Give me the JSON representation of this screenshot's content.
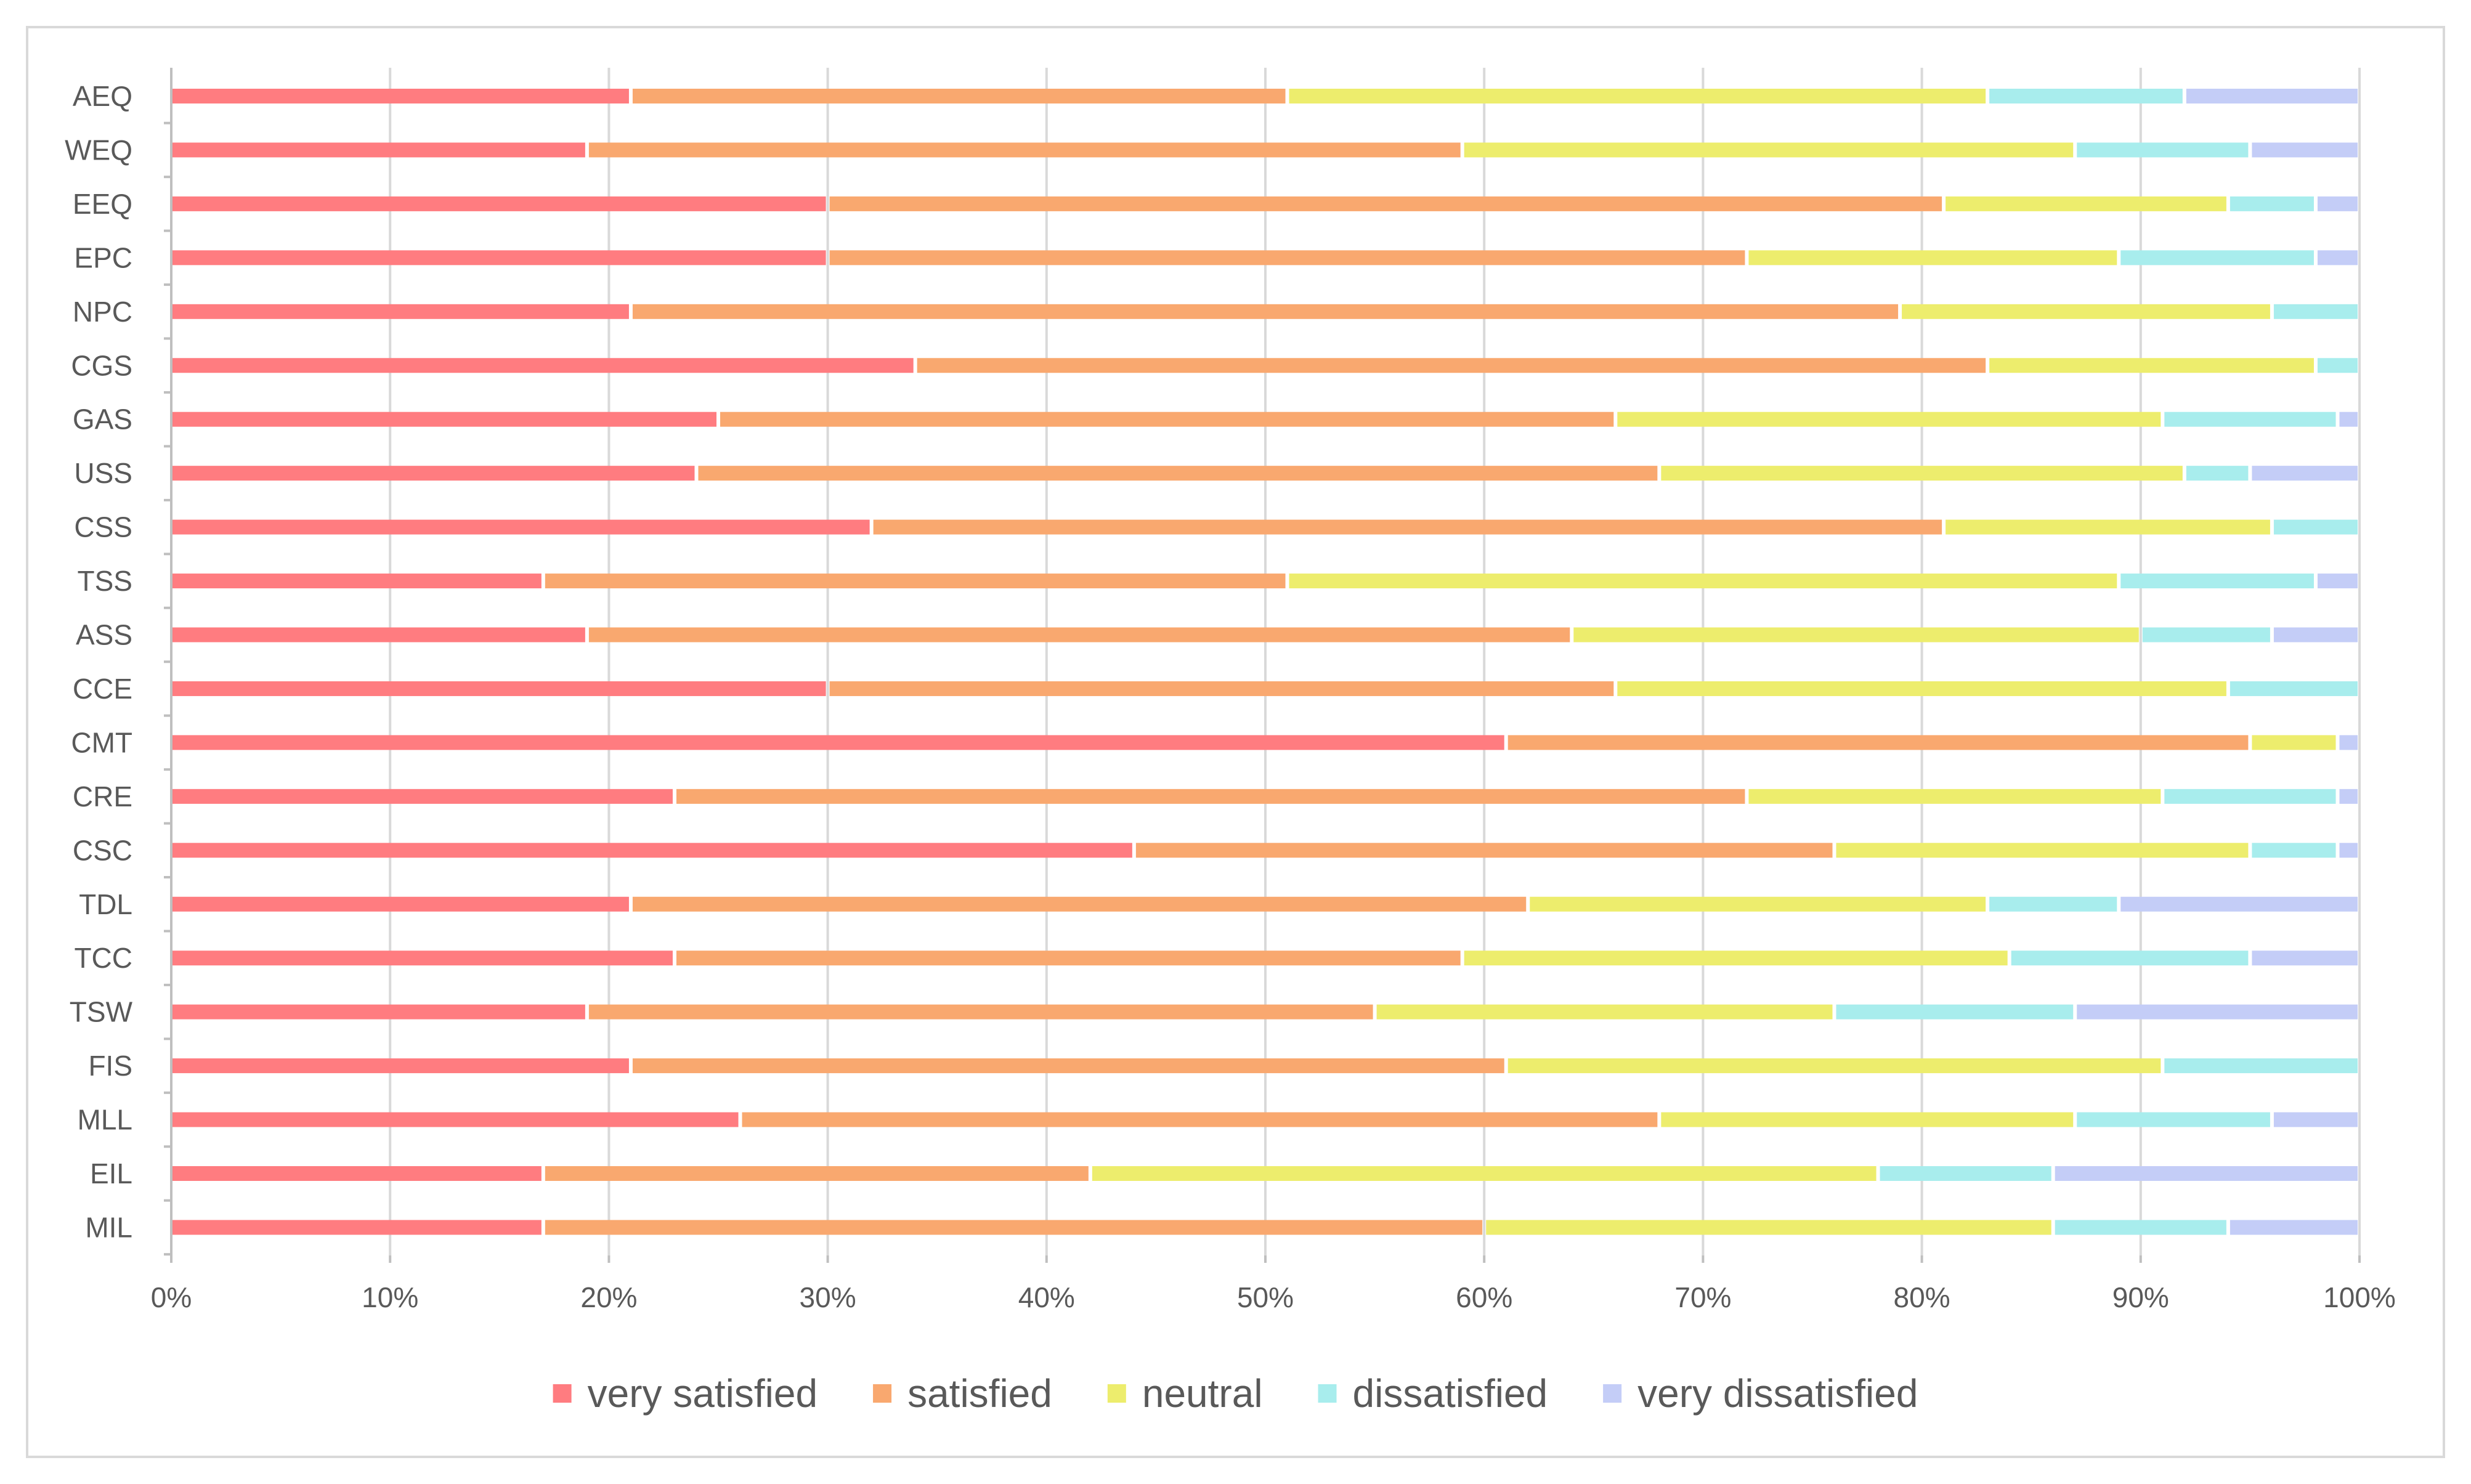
{
  "chart_data": {
    "type": "bar",
    "orientation": "horizontal",
    "stacked": "percent",
    "categories": [
      "AEQ",
      "WEQ",
      "EEQ",
      "EPC",
      "NPC",
      "CGS",
      "GAS",
      "USS",
      "CSS",
      "TSS",
      "ASS",
      "CCE",
      "CMT",
      "CRE",
      "CSC",
      "TDL",
      "TCC",
      "TSW",
      "FIS",
      "MLL",
      "EIL",
      "MIL"
    ],
    "series": [
      {
        "name": "very satisfied",
        "color": "#ff7c80",
        "values": [
          21,
          19,
          30,
          30,
          21,
          34,
          25,
          24,
          32,
          17,
          19,
          30,
          61,
          23,
          44,
          21,
          23,
          19,
          21,
          26,
          17,
          17
        ]
      },
      {
        "name": "satisfied",
        "color": "#f9a86f",
        "values": [
          30,
          40,
          51,
          42,
          58,
          49,
          41,
          44,
          49,
          34,
          45,
          36,
          34,
          49,
          32,
          41,
          36,
          36,
          40,
          42,
          25,
          43
        ]
      },
      {
        "name": "neutral",
        "color": "#eded6d",
        "values": [
          32,
          28,
          13,
          17,
          17,
          15,
          25,
          24,
          15,
          38,
          26,
          28,
          4,
          19,
          19,
          21,
          25,
          21,
          30,
          19,
          36,
          26
        ]
      },
      {
        "name": "dissatisfied",
        "color": "#a8eded",
        "values": [
          9,
          8,
          4,
          9,
          4,
          2,
          8,
          3,
          4,
          9,
          6,
          6,
          0,
          8,
          4,
          6,
          11,
          11,
          9,
          9,
          8,
          8
        ]
      },
      {
        "name": "very dissatisfied",
        "color": "#c4cdf7",
        "values": [
          8,
          5,
          2,
          2,
          0,
          0,
          1,
          5,
          0,
          2,
          4,
          0,
          1,
          1,
          1,
          11,
          5,
          13,
          0,
          4,
          14,
          6
        ]
      }
    ],
    "x_ticks": [
      "0%",
      "10%",
      "20%",
      "30%",
      "40%",
      "50%",
      "60%",
      "70%",
      "80%",
      "90%",
      "100%"
    ],
    "xlim": [
      0,
      100
    ],
    "grid": true,
    "legend_position": "bottom",
    "title": "",
    "xlabel": "",
    "ylabel": ""
  }
}
